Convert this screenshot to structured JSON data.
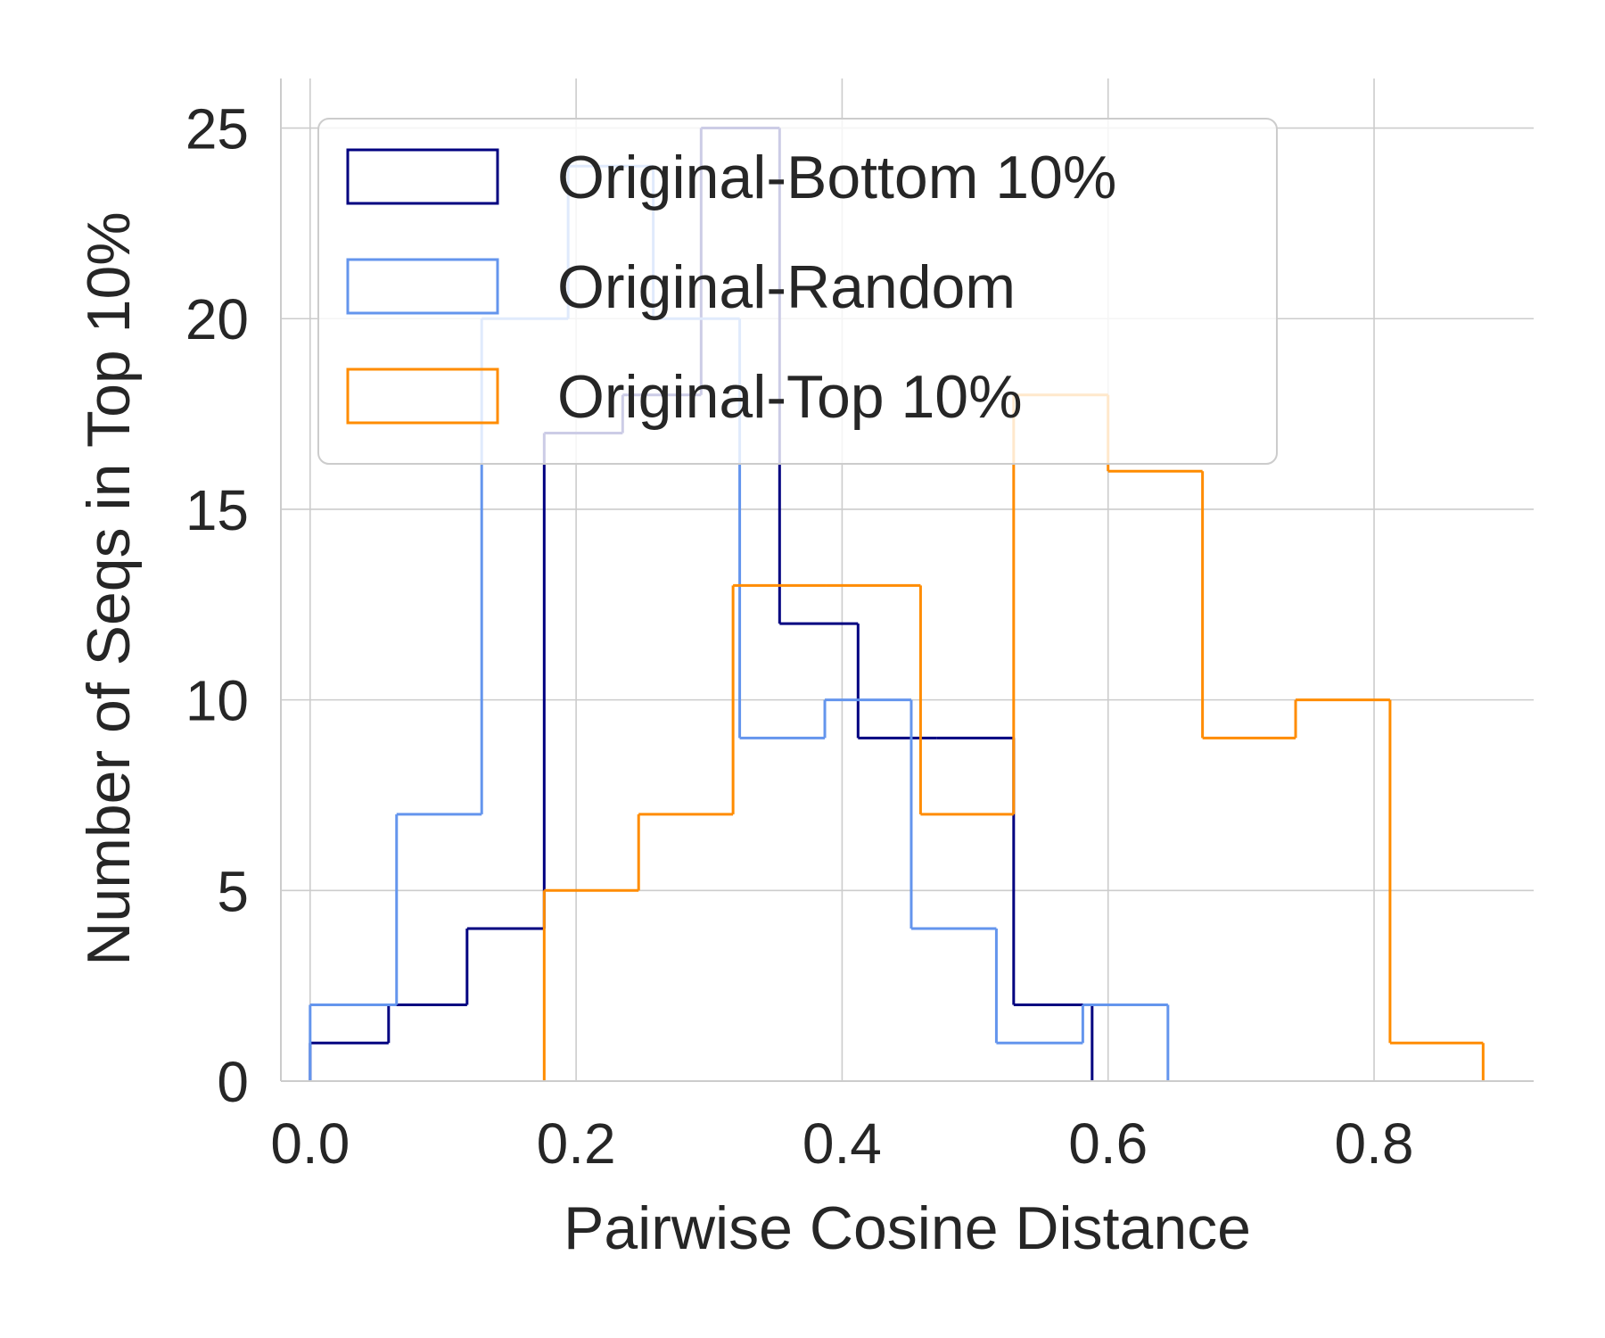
{
  "chart_data": {
    "type": "histogram-step",
    "xlabel": "Pairwise Cosine Distance",
    "ylabel": "Number of Seqs in Top 10%",
    "xlim": [
      -0.022,
      0.92
    ],
    "ylim": [
      0,
      26.3
    ],
    "xticks": [
      0.0,
      0.2,
      0.4,
      0.6,
      0.8
    ],
    "xtick_labels": [
      "0.0",
      "0.2",
      "0.4",
      "0.6",
      "0.8"
    ],
    "yticks": [
      0,
      5,
      10,
      15,
      20,
      25
    ],
    "ytick_labels": [
      "0",
      "5",
      "10",
      "15",
      "20",
      "25"
    ],
    "grid": true,
    "legend_position": "top-left",
    "series": [
      {
        "name": "Original-Bottom 10%",
        "color": "#000080",
        "bin_edges": [
          0.0,
          0.059,
          0.118,
          0.176,
          0.235,
          0.294,
          0.353,
          0.412,
          0.471,
          0.529,
          0.588
        ],
        "counts": [
          1,
          2,
          4,
          17,
          18,
          25,
          12,
          9,
          9,
          2
        ]
      },
      {
        "name": "Original-Random",
        "color": "#6495ED",
        "bin_edges": [
          0.0,
          0.065,
          0.129,
          0.194,
          0.258,
          0.323,
          0.387,
          0.452,
          0.516,
          0.581,
          0.645
        ],
        "counts": [
          2,
          7,
          20,
          24,
          20,
          9,
          10,
          4,
          1,
          2
        ]
      },
      {
        "name": "Original-Top 10%",
        "color": "#FF8C00",
        "bin_edges": [
          0.176,
          0.247,
          0.318,
          0.388,
          0.459,
          0.529,
          0.6,
          0.671,
          0.741,
          0.812,
          0.882
        ],
        "counts": [
          5,
          7,
          13,
          13,
          7,
          18,
          16,
          9,
          10,
          1
        ]
      }
    ]
  }
}
